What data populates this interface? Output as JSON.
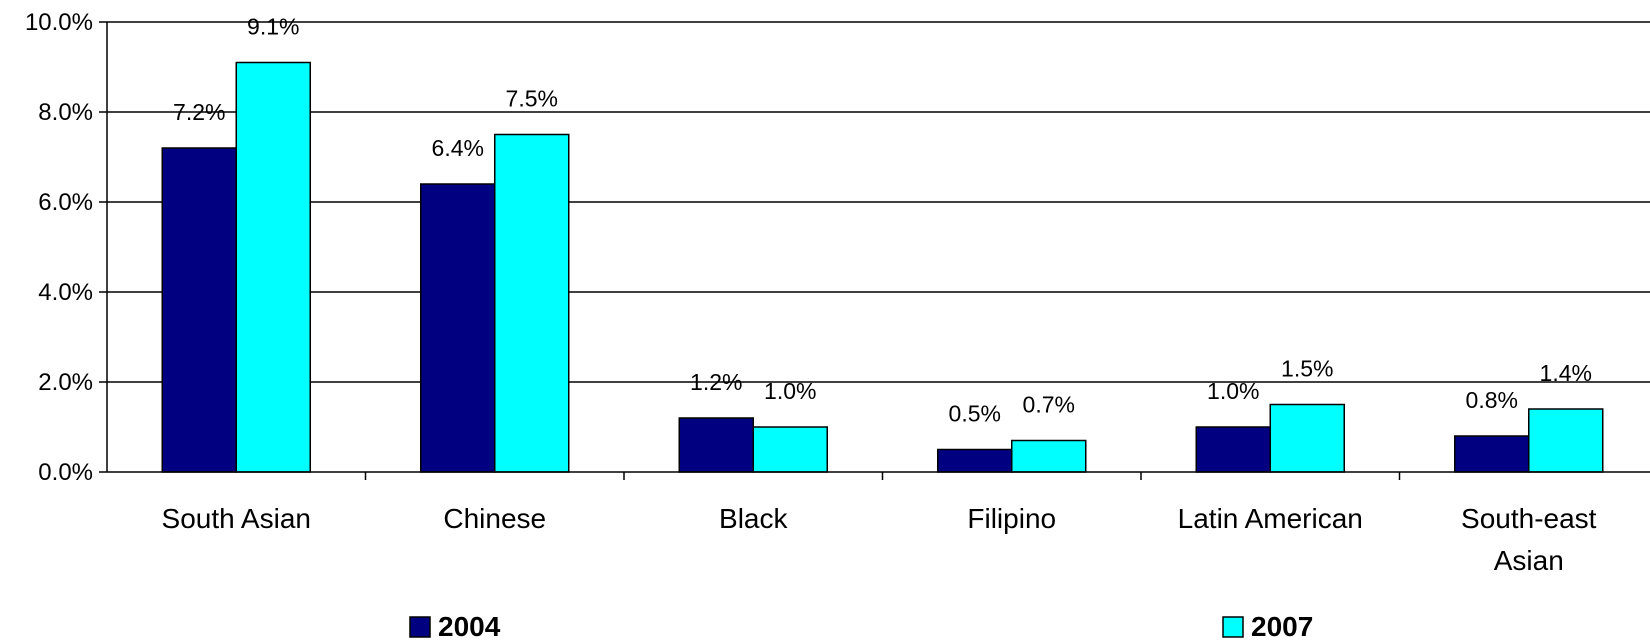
{
  "chart_data": {
    "type": "bar",
    "title": "",
    "xlabel": "",
    "ylabel": "",
    "categories": [
      [
        "South Asian"
      ],
      [
        "Chinese"
      ],
      [
        "Black"
      ],
      [
        "Filipino"
      ],
      [
        "Latin American"
      ],
      [
        "South-east",
        "Asian"
      ]
    ],
    "series": [
      {
        "name": "2004",
        "color": "#000080",
        "values": [
          7.2,
          6.4,
          1.2,
          0.5,
          1.0,
          0.8
        ],
        "labels": [
          "7.2%",
          "6.4%",
          "1.2%",
          "0.5%",
          "1.0%",
          "0.8%"
        ]
      },
      {
        "name": "2007",
        "color": "#00FFFF",
        "values": [
          9.1,
          7.5,
          1.0,
          0.7,
          1.5,
          1.4
        ],
        "labels": [
          "9.1%",
          "7.5%",
          "1.0%",
          "0.7%",
          "1.5%",
          "1.4%"
        ]
      }
    ],
    "ylim": [
      0,
      10
    ],
    "yticks": [
      0,
      2,
      4,
      6,
      8,
      10
    ],
    "ytick_labels": [
      "0.0%",
      "2.0%",
      "4.0%",
      "6.0%",
      "8.0%",
      "10.0%"
    ],
    "grid": true,
    "legend": "bottom"
  }
}
